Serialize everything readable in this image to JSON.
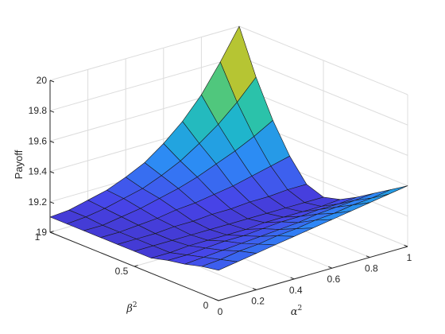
{
  "chart_data": {
    "type": "surface",
    "xlabel_base": "α",
    "xlabel_exp": "2",
    "ylabel_base": "β",
    "ylabel_exp": "2",
    "zlabel": "Payoff",
    "xlim": [
      0,
      1
    ],
    "ylim": [
      0,
      1
    ],
    "zlim": [
      19,
      20
    ],
    "xticks": [
      0,
      0.2,
      0.4,
      0.6,
      0.8,
      1
    ],
    "xtick_labels": [
      "0",
      "0.2",
      "0.4",
      "0.6",
      "0.8",
      "1"
    ],
    "yticks": [
      0,
      0.5,
      1
    ],
    "ytick_labels": [
      "0",
      "0.5",
      "1"
    ],
    "zticks": [
      19,
      19.2,
      19.4,
      19.6,
      19.8,
      20
    ],
    "ztick_labels": [
      "19",
      "19.2",
      "19.4",
      "19.6",
      "19.8",
      "20"
    ],
    "grid": true,
    "colormap": [
      "#3e26a8",
      "#4744e8",
      "#2e87f7",
      "#1cb2d3",
      "#2fc69f",
      "#95ca36",
      "#e6bd2e",
      "#f9e01d"
    ],
    "x": [
      0,
      0.1,
      0.2,
      0.3,
      0.4,
      0.5,
      0.6,
      0.7,
      0.8,
      0.9,
      1.0
    ],
    "y": [
      0,
      0.1,
      0.2,
      0.3,
      0.4,
      0.5,
      0.6,
      0.7,
      0.8,
      0.9,
      1.0
    ],
    "z_rows_by_y": [
      [
        19.2,
        19.22,
        19.24,
        19.26,
        19.28,
        19.3,
        19.32,
        19.34,
        19.36,
        19.38,
        19.4
      ],
      [
        19.18,
        19.19,
        19.21,
        19.22,
        19.24,
        19.25,
        19.27,
        19.28,
        19.3,
        19.31,
        19.33
      ],
      [
        19.15,
        19.16,
        19.17,
        19.18,
        19.19,
        19.2,
        19.21,
        19.23,
        19.24,
        19.25,
        19.26
      ],
      [
        19.13,
        19.13,
        19.14,
        19.15,
        19.15,
        19.16,
        19.17,
        19.17,
        19.18,
        19.18,
        19.19
      ],
      [
        19.1,
        19.1,
        19.11,
        19.11,
        19.11,
        19.11,
        19.12,
        19.12,
        19.12,
        19.12,
        19.13
      ],
      [
        19.1,
        19.1,
        19.1,
        19.1,
        19.1,
        19.1,
        19.1,
        19.1,
        19.1,
        19.1,
        19.1
      ],
      [
        19.1,
        19.1,
        19.1,
        19.11,
        19.11,
        19.12,
        19.12,
        19.13,
        19.13,
        19.14,
        19.14
      ],
      [
        19.1,
        19.1,
        19.11,
        19.12,
        19.14,
        19.15,
        19.17,
        19.19,
        19.22,
        19.25,
        19.28
      ],
      [
        19.1,
        19.1,
        19.12,
        19.14,
        19.17,
        19.2,
        19.24,
        19.29,
        19.34,
        19.4,
        19.47
      ],
      [
        19.1,
        19.11,
        19.13,
        19.16,
        19.19,
        19.24,
        19.3,
        19.38,
        19.47,
        19.58,
        19.71
      ],
      [
        19.1,
        19.11,
        19.14,
        19.17,
        19.22,
        19.28,
        19.37,
        19.48,
        19.62,
        19.8,
        20.0
      ]
    ]
  }
}
